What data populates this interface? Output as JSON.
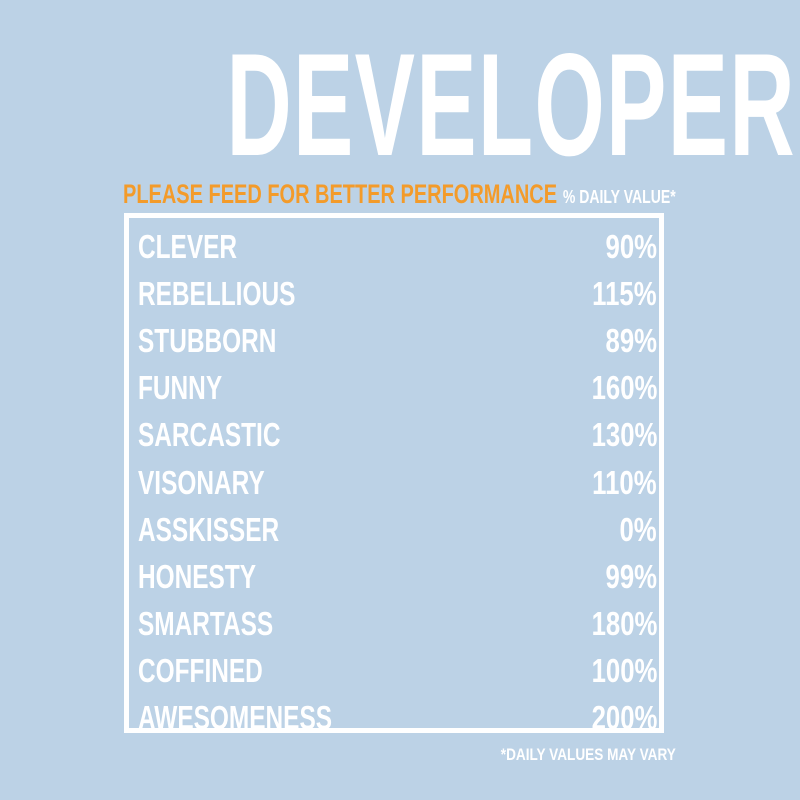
{
  "title": "DEVELOPER",
  "subtitle": "PLEASE FEED FOR BETTER PERFORMANCE",
  "daily_value_header": "% DAILY VALUE*",
  "items": [
    {
      "label": "CLEVER",
      "value": "90%"
    },
    {
      "label": "REBELLIOUS",
      "value": "115%"
    },
    {
      "label": "STUBBORN",
      "value": "89%"
    },
    {
      "label": "FUNNY",
      "value": "160%"
    },
    {
      "label": "SARCASTIC",
      "value": "130%"
    },
    {
      "label": "VISONARY",
      "value": "110%"
    },
    {
      "label": "ASSKISSER",
      "value": "0%"
    },
    {
      "label": "HONESTY",
      "value": "99%"
    },
    {
      "label": "SMARTASS",
      "value": "180%"
    },
    {
      "label": "COFFINED",
      "value": "100%"
    },
    {
      "label": "AWESOMENESS",
      "value": "200%"
    }
  ],
  "footnote": "*DAILY VALUES MAY VARY",
  "colors": {
    "background": "#bcd2e6",
    "text": "#ffffff",
    "accent": "#f39b2a"
  }
}
